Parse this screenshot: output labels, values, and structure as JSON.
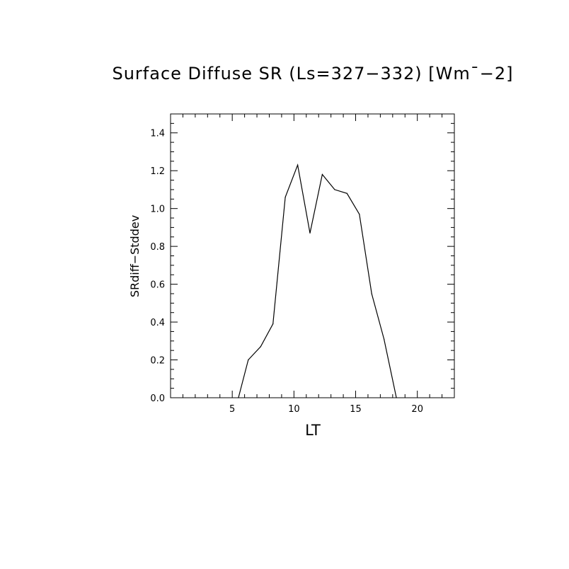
{
  "chart_data": {
    "type": "line",
    "title": "Surface Diffuse SR (Ls=327−332) [Wm¯−2]",
    "xlabel": "LT",
    "ylabel": "SRdiff−Stddev",
    "xlim": [
      0,
      23
    ],
    "ylim": [
      0,
      1.5
    ],
    "x_ticks": [
      5,
      10,
      15,
      20
    ],
    "x_tick_labels": [
      "5",
      "10",
      "15",
      "20"
    ],
    "y_ticks": [
      0.0,
      0.2,
      0.4,
      0.6,
      0.8,
      1.0,
      1.2,
      1.4
    ],
    "y_tick_labels": [
      "0.0",
      "0.2",
      "0.4",
      "0.6",
      "0.8",
      "1.0",
      "1.2",
      "1.4"
    ],
    "grid": false,
    "series": [
      {
        "x": [
          5.5,
          6.3,
          7.3,
          8.3,
          9.3,
          10.3,
          11.3,
          12.3,
          13.3,
          14.3,
          15.3,
          16.3,
          17.3,
          18.3
        ],
        "y": [
          0.0,
          0.2,
          0.27,
          0.39,
          1.06,
          1.23,
          0.87,
          1.18,
          1.1,
          1.08,
          0.97,
          0.55,
          0.31,
          0.0
        ]
      }
    ],
    "colors": {
      "line": "#000000",
      "axes": "#000000",
      "background": "#ffffff"
    }
  }
}
